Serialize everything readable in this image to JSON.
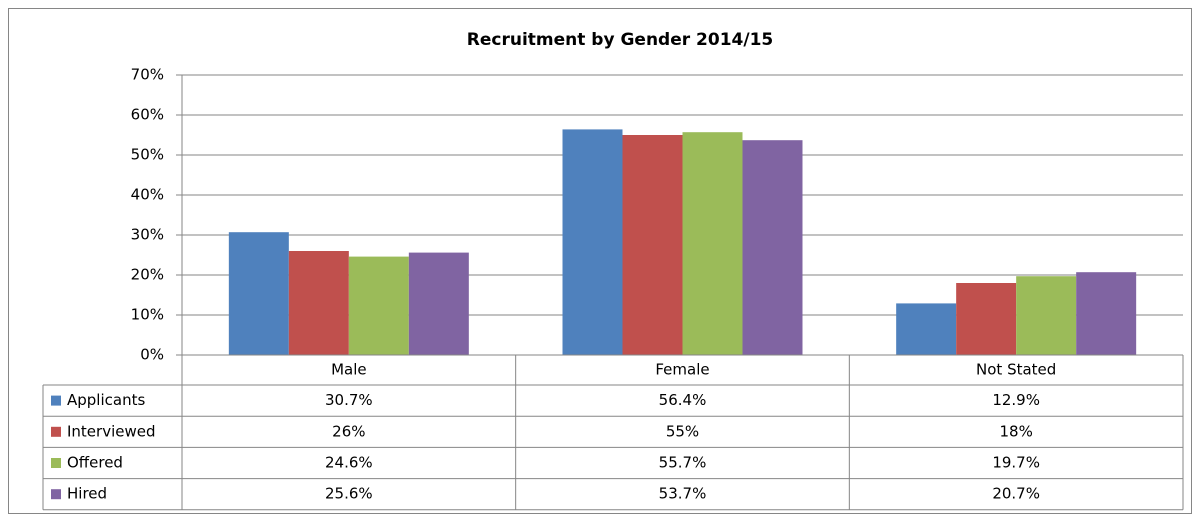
{
  "chart_data": {
    "type": "bar",
    "title": "Recruitment by Gender 2014/15",
    "categories": [
      "Male",
      "Female",
      "Not Stated"
    ],
    "series": [
      {
        "name": "Applicants",
        "color": "#4f81bd",
        "values": [
          30.7,
          56.4,
          12.9
        ],
        "value_labels": [
          "30.7%",
          "56.4%",
          "12.9%"
        ]
      },
      {
        "name": "Interviewed",
        "color": "#c0504d",
        "values": [
          26,
          55,
          18
        ],
        "value_labels": [
          "26%",
          "55%",
          "18%"
        ]
      },
      {
        "name": "Offered",
        "color": "#9bbb59",
        "values": [
          24.6,
          55.7,
          19.7
        ],
        "value_labels": [
          "24.6%",
          "55.7%",
          "19.7%"
        ]
      },
      {
        "name": "Hired",
        "color": "#8064a2",
        "values": [
          25.6,
          53.7,
          20.7
        ],
        "value_labels": [
          "25.6%",
          "53.7%",
          "20.7%"
        ]
      }
    ],
    "ylim": [
      0,
      70
    ],
    "yticks": [
      {
        "value": 0,
        "label": "0%"
      },
      {
        "value": 10,
        "label": "10%"
      },
      {
        "value": 20,
        "label": "20%"
      },
      {
        "value": 30,
        "label": "30%"
      },
      {
        "value": 40,
        "label": "40%"
      },
      {
        "value": 50,
        "label": "50%"
      },
      {
        "value": 60,
        "label": "60%"
      },
      {
        "value": 70,
        "label": "70%"
      }
    ],
    "grid": true
  }
}
